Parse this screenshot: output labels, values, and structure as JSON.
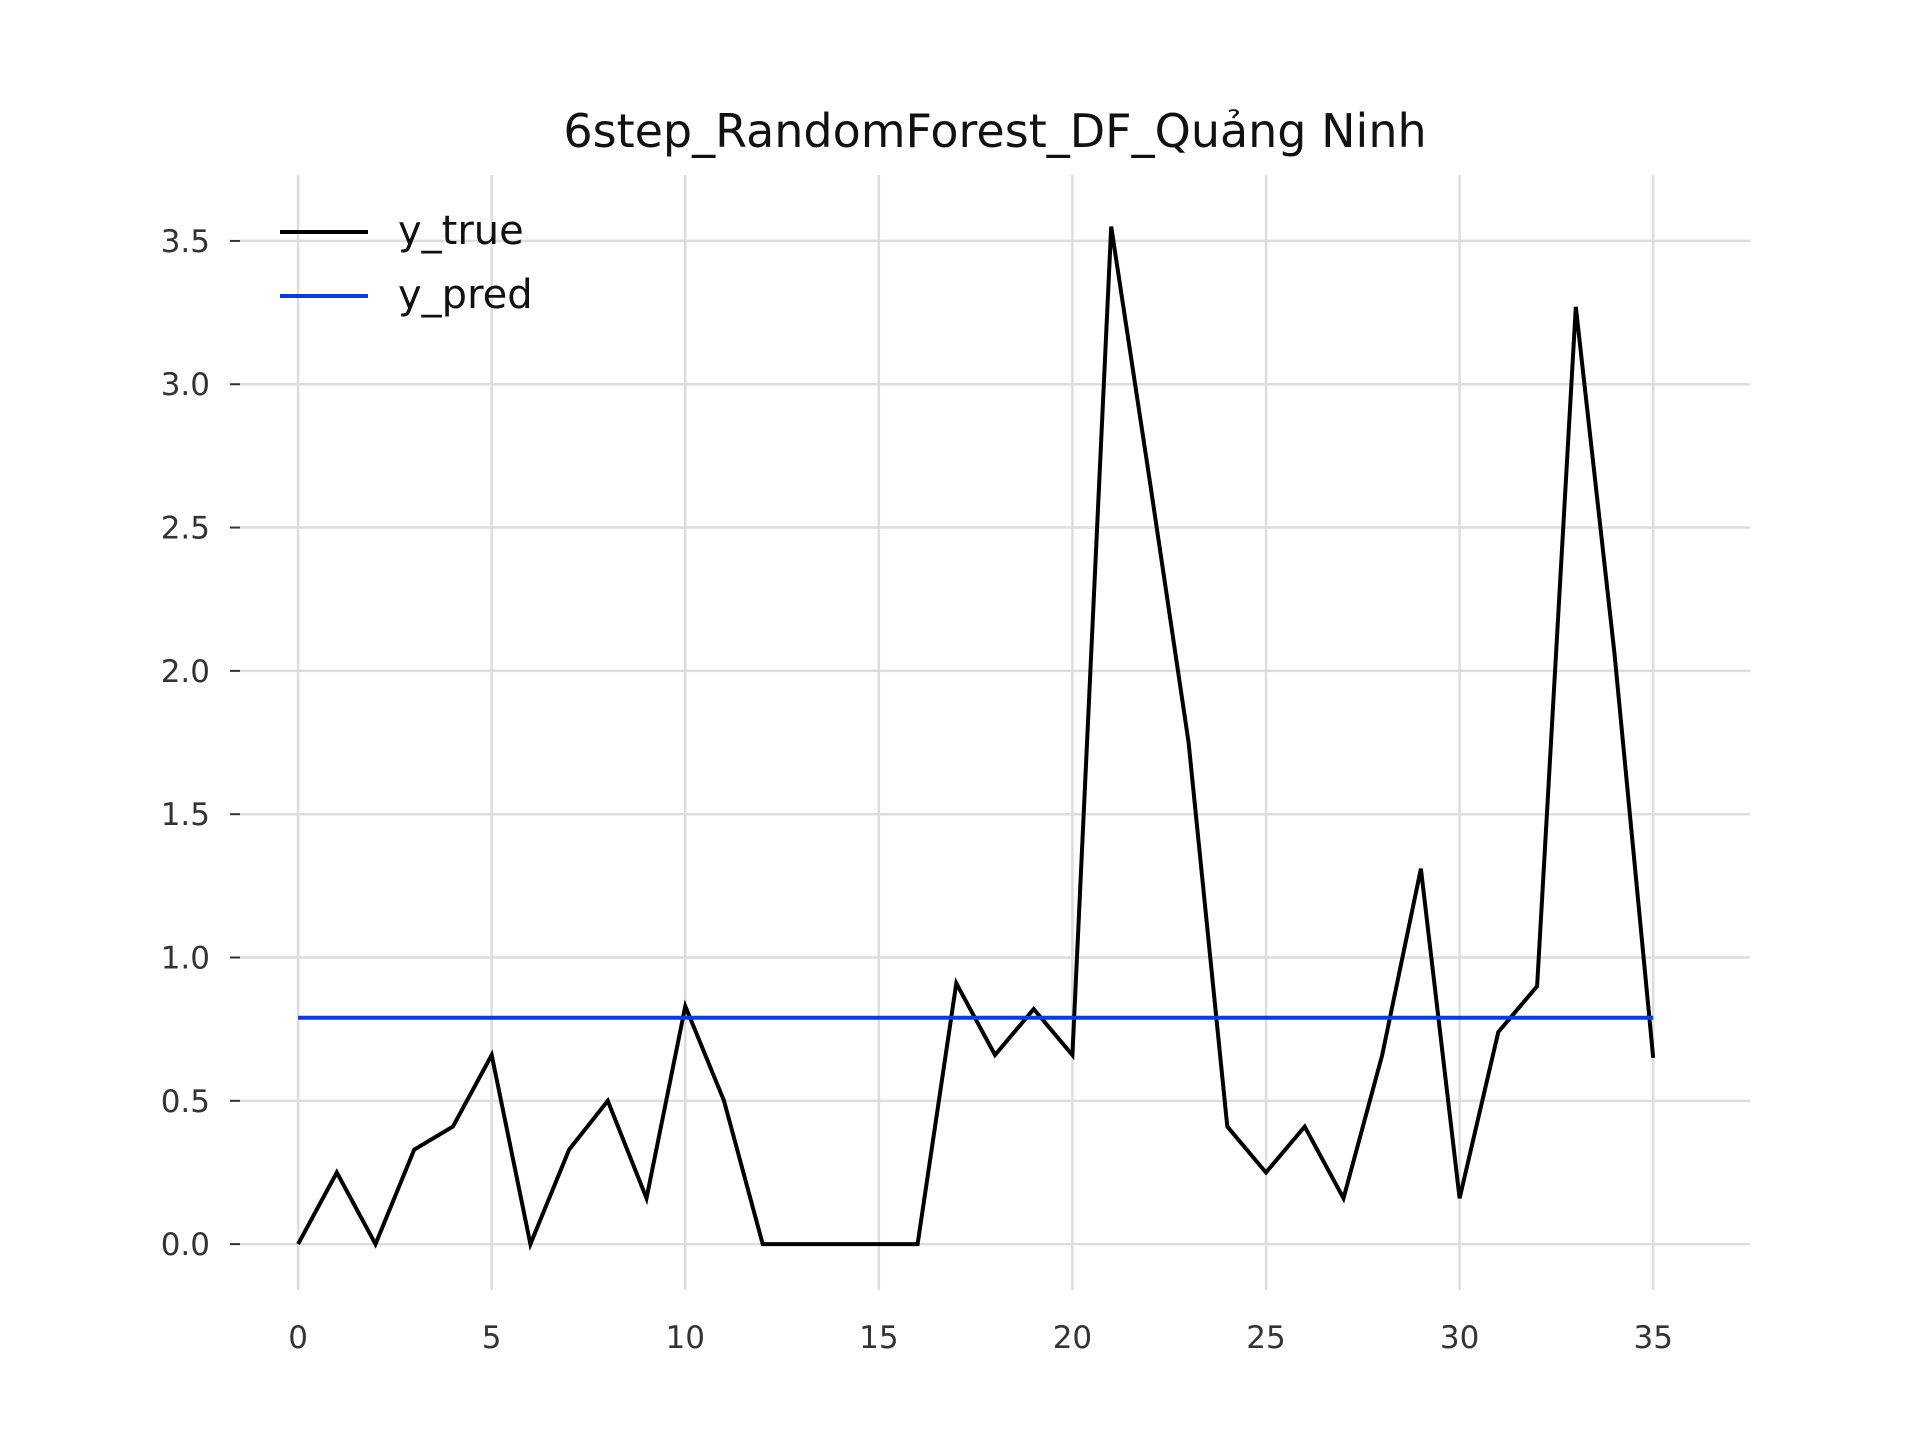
{
  "chart_data": {
    "type": "line",
    "title": "6step_RandomForest_DF_Quảng Ninh",
    "xlabel": "",
    "ylabel": "",
    "xlim": [
      -1.5,
      37.5
    ],
    "ylim": [
      -0.16,
      3.73
    ],
    "xticks": [
      0,
      5,
      10,
      15,
      20,
      25,
      30,
      35
    ],
    "yticks": [
      0.0,
      0.5,
      1.0,
      1.5,
      2.0,
      2.5,
      3.0,
      3.5
    ],
    "xtick_labels": [
      "0",
      "5",
      "10",
      "15",
      "20",
      "25",
      "30",
      "35"
    ],
    "ytick_labels": [
      "0.0",
      "0.5",
      "1.0",
      "1.5",
      "2.0",
      "2.5",
      "3.0",
      "3.5"
    ],
    "grid": true,
    "legend_position": "top-left",
    "x": [
      0,
      1,
      2,
      3,
      4,
      5,
      6,
      7,
      8,
      9,
      10,
      11,
      12,
      13,
      14,
      15,
      16,
      17,
      18,
      19,
      20,
      21,
      22,
      23,
      24,
      25,
      26,
      27,
      28,
      29,
      30,
      31,
      32,
      33,
      34,
      35
    ],
    "series": [
      {
        "name": "y_true",
        "color": "#000000",
        "values": [
          0.0,
          0.25,
          0.0,
          0.33,
          0.41,
          0.66,
          0.0,
          0.33,
          0.5,
          0.16,
          0.83,
          0.5,
          0.0,
          0.0,
          0.0,
          0.0,
          0.0,
          0.91,
          0.66,
          0.82,
          0.66,
          3.55,
          2.66,
          1.75,
          0.41,
          0.25,
          0.41,
          0.16,
          0.66,
          1.31,
          0.16,
          0.74,
          0.9,
          3.27,
          2.06,
          0.65
        ]
      },
      {
        "name": "y_pred",
        "color": "#0a3be6",
        "values": [
          0.79,
          0.79,
          0.79,
          0.79,
          0.79,
          0.79,
          0.79,
          0.79,
          0.79,
          0.79,
          0.79,
          0.79,
          0.79,
          0.79,
          0.79,
          0.79,
          0.79,
          0.79,
          0.79,
          0.79,
          0.79,
          0.79,
          0.79,
          0.79,
          0.79,
          0.79,
          0.79,
          0.79,
          0.79,
          0.79,
          0.79,
          0.79,
          0.79,
          0.79,
          0.79,
          0.79
        ]
      }
    ],
    "colors": {
      "grid": "#dddddd",
      "tick_text": "#333333",
      "text": "#111111"
    }
  }
}
